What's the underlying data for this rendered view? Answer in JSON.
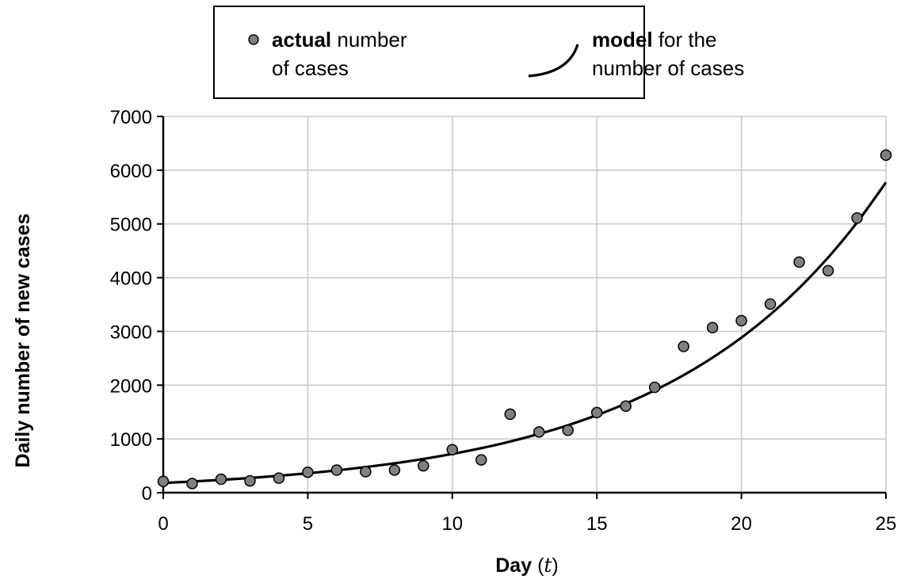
{
  "chart_data": {
    "type": "scatter",
    "xlabel": "Day",
    "xlabel_var": "t",
    "ylabel": "Daily number of new cases",
    "xlim": [
      0,
      25
    ],
    "ylim": [
      0,
      7000
    ],
    "xticks": [
      0,
      5,
      10,
      15,
      20,
      25
    ],
    "yticks": [
      0,
      1000,
      2000,
      3000,
      4000,
      5000,
      6000,
      7000
    ],
    "grid": true,
    "legend_position": "top",
    "legend": {
      "actual": {
        "bold": "actual",
        "line1_rest": "number",
        "line2": "of cases"
      },
      "model": {
        "bold": "model",
        "line1_rest": "for the",
        "line2": "number of cases"
      }
    },
    "series": [
      {
        "name": "actual number of cases",
        "kind": "points",
        "color": "#808080",
        "x": [
          0,
          1,
          2,
          3,
          4,
          5,
          6,
          7,
          8,
          9,
          10,
          11,
          12,
          13,
          14,
          15,
          16,
          17,
          18,
          19,
          20,
          21,
          22,
          23,
          24,
          25
        ],
        "y": [
          210,
          170,
          250,
          220,
          270,
          380,
          420,
          390,
          420,
          500,
          800,
          610,
          1460,
          1130,
          1160,
          1490,
          1610,
          1960,
          2720,
          3070,
          3200,
          3510,
          4290,
          4130,
          5110,
          6280
        ]
      },
      {
        "name": "model for the number of cases",
        "kind": "curve",
        "color": "#000000",
        "x": [
          0,
          1,
          2,
          3,
          4,
          5,
          6,
          7,
          8,
          9,
          10,
          11,
          12,
          13,
          14,
          15,
          16,
          17,
          18,
          19,
          20,
          21,
          22,
          23,
          24,
          25
        ],
        "y": [
          180,
          207,
          238,
          273,
          314,
          360,
          414,
          476,
          546,
          627,
          721,
          828,
          951,
          1093,
          1255,
          1442,
          1657,
          1903,
          2186,
          2512,
          2885,
          3315,
          3808,
          4375,
          5026,
          5773
        ]
      }
    ]
  }
}
